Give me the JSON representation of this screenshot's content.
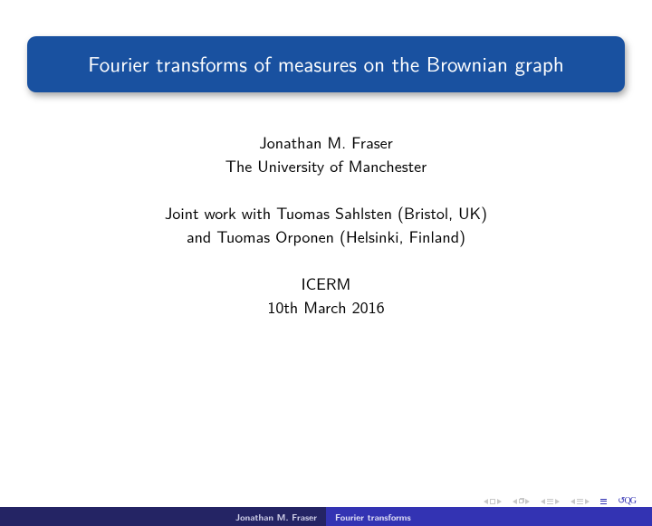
{
  "title": "Fourier transforms of measures on the Brownian graph",
  "author_line": "Jonathan M. Fraser",
  "affiliation": "The University of Manchester",
  "joint1": "Joint work with Tuomas Sahlsten (Bristol, UK)",
  "joint2": "and Tuomas Orponen (Helsinki, Finland)",
  "venue": "ICERM",
  "date": "10th March 2016",
  "footer": {
    "author": "Jonathan M. Fraser",
    "short_title": "Fourier transforms"
  },
  "colors": {
    "title_bg": "#1951a0",
    "footer_left_bg": "#242464",
    "footer_right_bg": "#3333b3"
  }
}
